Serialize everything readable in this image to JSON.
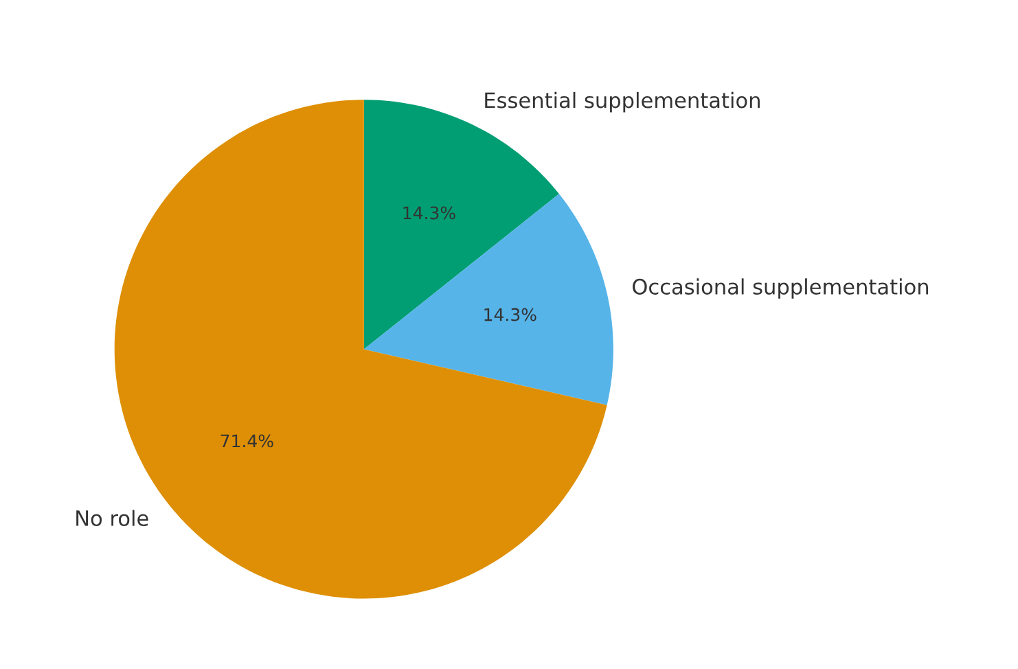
{
  "chart_data": {
    "type": "pie",
    "categories": [
      "Essential supplementation",
      "Occasional supplementation",
      "No role"
    ],
    "values": [
      14.3,
      14.3,
      71.4
    ],
    "colors": [
      "#029e73",
      "#56b4e9",
      "#de8f05"
    ],
    "value_labels": [
      "14.3%",
      "14.3%",
      "71.4%"
    ],
    "legend": false
  }
}
